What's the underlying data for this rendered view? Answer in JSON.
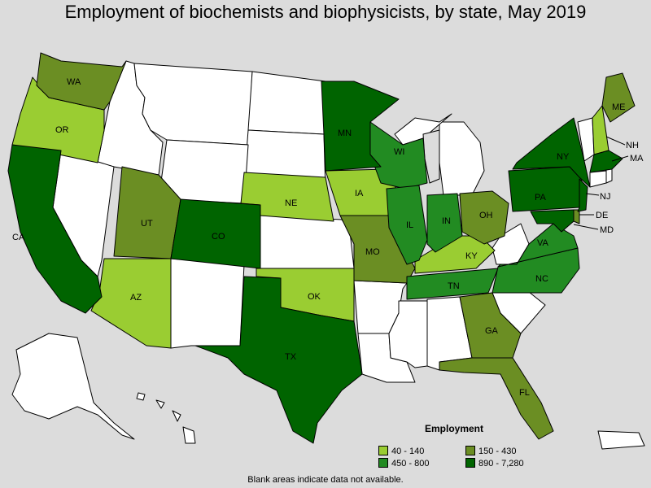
{
  "title": "Employment of biochemists and biophysicists, by state, May 2019",
  "legend": {
    "title": "Employment",
    "items": [
      {
        "label": "40 - 140",
        "color": "#9acd32"
      },
      {
        "label": "150 - 430",
        "color": "#6b8e23"
      },
      {
        "label": "450 - 800",
        "color": "#228b22"
      },
      {
        "label": "890 - 7,280",
        "color": "#006400"
      }
    ]
  },
  "footnote": "Blank areas indicate data not available.",
  "state_labels": {
    "WA": "WA",
    "OR": "OR",
    "CA": "CA",
    "UT": "UT",
    "AZ": "AZ",
    "CO": "CO",
    "NE": "NE",
    "OK": "OK",
    "TX": "TX",
    "MN": "MN",
    "IA": "IA",
    "MO": "MO",
    "WI": "WI",
    "IL": "IL",
    "IN": "IN",
    "OH": "OH",
    "KY": "KY",
    "TN": "TN",
    "GA": "GA",
    "FL": "FL",
    "NC": "NC",
    "VA": "VA",
    "PA": "PA",
    "NY": "NY",
    "ME": "ME",
    "NH": "NH",
    "MA": "MA",
    "NJ": "NJ",
    "DE": "DE",
    "MD": "MD"
  },
  "employment_class": {
    "WA": "150 - 430",
    "OR": "40 - 140",
    "CA": "890 - 7,280",
    "UT": "150 - 430",
    "AZ": "40 - 140",
    "CO": "890 - 7,280",
    "NE": "40 - 140",
    "OK": "40 - 140",
    "TX": "890 - 7,280",
    "MN": "890 - 7,280",
    "IA": "40 - 140",
    "MO": "150 - 430",
    "WI": "450 - 800",
    "IL": "450 - 800",
    "IN": "450 - 800",
    "OH": "150 - 430",
    "KY": "40 - 140",
    "TN": "450 - 800",
    "GA": "150 - 430",
    "FL": "150 - 430",
    "NC": "450 - 800",
    "VA": "450 - 800",
    "PA": "890 - 7,280",
    "NY": "890 - 7,280",
    "ME": "150 - 430",
    "NH": "40 - 140",
    "MA": "890 - 7,280",
    "NJ": "890 - 7,280",
    "DE": "150 - 430",
    "MD": "890 - 7,280",
    "VT": "40 - 140"
  }
}
